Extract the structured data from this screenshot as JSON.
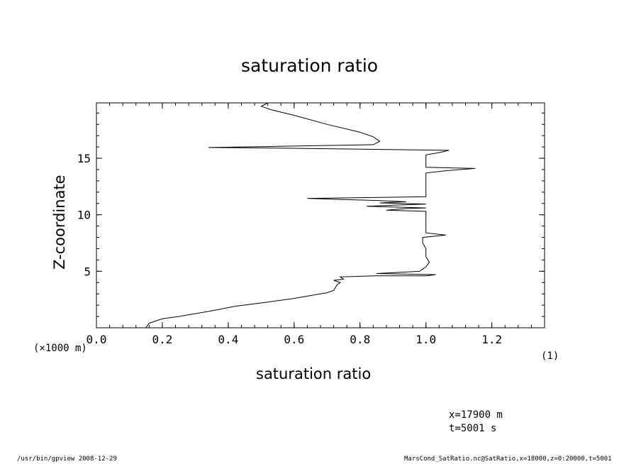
{
  "chart_data": {
    "type": "line",
    "title": "saturation ratio",
    "xlabel": "saturation ratio",
    "ylabel": "Z-coordinate",
    "x_units": "(1)",
    "y_units": "(×1000 m)",
    "xlim": [
      0.0,
      1.36
    ],
    "ylim": [
      0.0,
      19.9
    ],
    "grid": false,
    "x_ticks": [
      0.0,
      0.2,
      0.4,
      0.6,
      0.8,
      1.0,
      1.2
    ],
    "x_tick_labels": [
      "0.0",
      "0.2",
      "0.4",
      "0.6",
      "0.8",
      "1.0",
      "1.2"
    ],
    "y_ticks": [
      5,
      10,
      15
    ],
    "y_tick_labels": [
      "5",
      "10",
      "15"
    ],
    "series": [
      {
        "points": [
          [
            0.15,
            0.0
          ],
          [
            0.16,
            0.4
          ],
          [
            0.2,
            0.8
          ],
          [
            0.25,
            1.0
          ],
          [
            0.35,
            1.5
          ],
          [
            0.42,
            1.9
          ],
          [
            0.5,
            2.2
          ],
          [
            0.6,
            2.6
          ],
          [
            0.66,
            2.9
          ],
          [
            0.7,
            3.1
          ],
          [
            0.72,
            3.3
          ],
          [
            0.73,
            3.8
          ],
          [
            0.74,
            4.0
          ],
          [
            0.72,
            4.2
          ],
          [
            0.75,
            4.3
          ],
          [
            0.74,
            4.5
          ],
          [
            0.85,
            4.6
          ],
          [
            1.0,
            4.6
          ],
          [
            1.03,
            4.7
          ],
          [
            0.85,
            4.8
          ],
          [
            0.92,
            4.9
          ],
          [
            0.98,
            5.0
          ],
          [
            1.0,
            5.4
          ],
          [
            1.01,
            5.8
          ],
          [
            1.0,
            6.3
          ],
          [
            1.0,
            7.0
          ],
          [
            0.99,
            7.5
          ],
          [
            0.99,
            8.0
          ],
          [
            1.06,
            8.2
          ],
          [
            1.0,
            8.4
          ],
          [
            1.0,
            9.0
          ],
          [
            1.0,
            10.0
          ],
          [
            1.0,
            10.3
          ],
          [
            0.88,
            10.4
          ],
          [
            0.94,
            10.55
          ],
          [
            1.0,
            10.6
          ],
          [
            0.82,
            10.75
          ],
          [
            0.9,
            10.85
          ],
          [
            1.0,
            10.95
          ],
          [
            0.86,
            11.05
          ],
          [
            0.94,
            11.15
          ],
          [
            0.86,
            11.25
          ],
          [
            0.64,
            11.45
          ],
          [
            0.9,
            11.55
          ],
          [
            1.0,
            11.6
          ],
          [
            1.0,
            12.0
          ],
          [
            1.0,
            13.0
          ],
          [
            1.0,
            13.7
          ],
          [
            1.06,
            13.9
          ],
          [
            1.15,
            14.1
          ],
          [
            1.0,
            14.2
          ],
          [
            1.0,
            15.0
          ],
          [
            1.0,
            15.3
          ],
          [
            1.04,
            15.5
          ],
          [
            1.07,
            15.7
          ],
          [
            0.55,
            15.9
          ],
          [
            0.34,
            15.95
          ],
          [
            0.55,
            16.05
          ],
          [
            0.84,
            16.2
          ],
          [
            0.86,
            16.5
          ],
          [
            0.84,
            16.9
          ],
          [
            0.8,
            17.3
          ],
          [
            0.7,
            18.0
          ],
          [
            0.6,
            18.8
          ],
          [
            0.53,
            19.3
          ],
          [
            0.5,
            19.6
          ],
          [
            0.52,
            19.9
          ]
        ]
      }
    ]
  },
  "info": {
    "x_position": "x=17900 m",
    "time": "t=5001 s"
  },
  "footer": {
    "left": "/usr/bin/gpview  2008-12-29",
    "right": "MarsCond_SatRatio.nc@SatRatio,x=18000,z=0:20000,t=5001"
  }
}
